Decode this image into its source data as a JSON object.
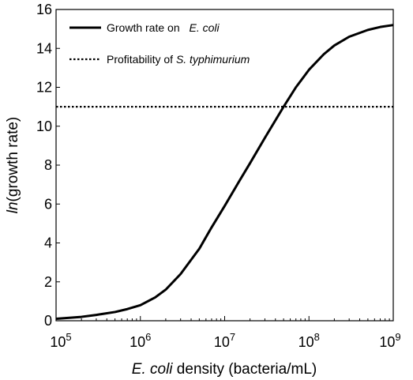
{
  "chart_data": {
    "type": "line",
    "xlabel_italic": "E. coli",
    "xlabel_rest": " density (bacteria/mL)",
    "ylabel_italic": "ln",
    "ylabel_rest": "(growth rate)",
    "x_scale": "log",
    "xlim": [
      100000,
      1000000000
    ],
    "ylim": [
      0,
      16
    ],
    "x_ticks": [
      {
        "value": 100000,
        "base": "10",
        "exp": "5"
      },
      {
        "value": 1000000,
        "base": "10",
        "exp": "6"
      },
      {
        "value": 10000000,
        "base": "10",
        "exp": "7"
      },
      {
        "value": 100000000,
        "base": "10",
        "exp": "8"
      },
      {
        "value": 1000000000,
        "base": "10",
        "exp": "9"
      }
    ],
    "y_ticks": [
      0,
      2,
      4,
      6,
      8,
      10,
      12,
      14,
      16
    ],
    "grid": false,
    "legend_position": "top-left",
    "series": [
      {
        "name_plain": "Growth rate on ",
        "name_italic": "E. coli",
        "style": "solid",
        "color": "#000000",
        "x": [
          100000,
          200000,
          300000,
          500000,
          700000,
          1000000,
          1500000,
          2000000,
          3000000,
          5000000,
          7000000,
          10000000,
          15000000,
          20000000,
          30000000,
          50000000,
          70000000,
          100000000,
          150000000,
          200000000,
          300000000,
          500000000,
          700000000,
          1000000000
        ],
        "y": [
          0.1,
          0.2,
          0.3,
          0.45,
          0.6,
          0.8,
          1.2,
          1.6,
          2.4,
          3.7,
          4.8,
          5.9,
          7.2,
          8.1,
          9.4,
          11.0,
          12.0,
          12.9,
          13.7,
          14.15,
          14.6,
          14.95,
          15.1,
          15.2
        ]
      },
      {
        "name_plain": "Profitability of ",
        "name_italic": "S. typhimurium",
        "style": "dotted",
        "color": "#000000",
        "x": [
          100000,
          1000000000
        ],
        "y": [
          11,
          11
        ]
      }
    ]
  }
}
